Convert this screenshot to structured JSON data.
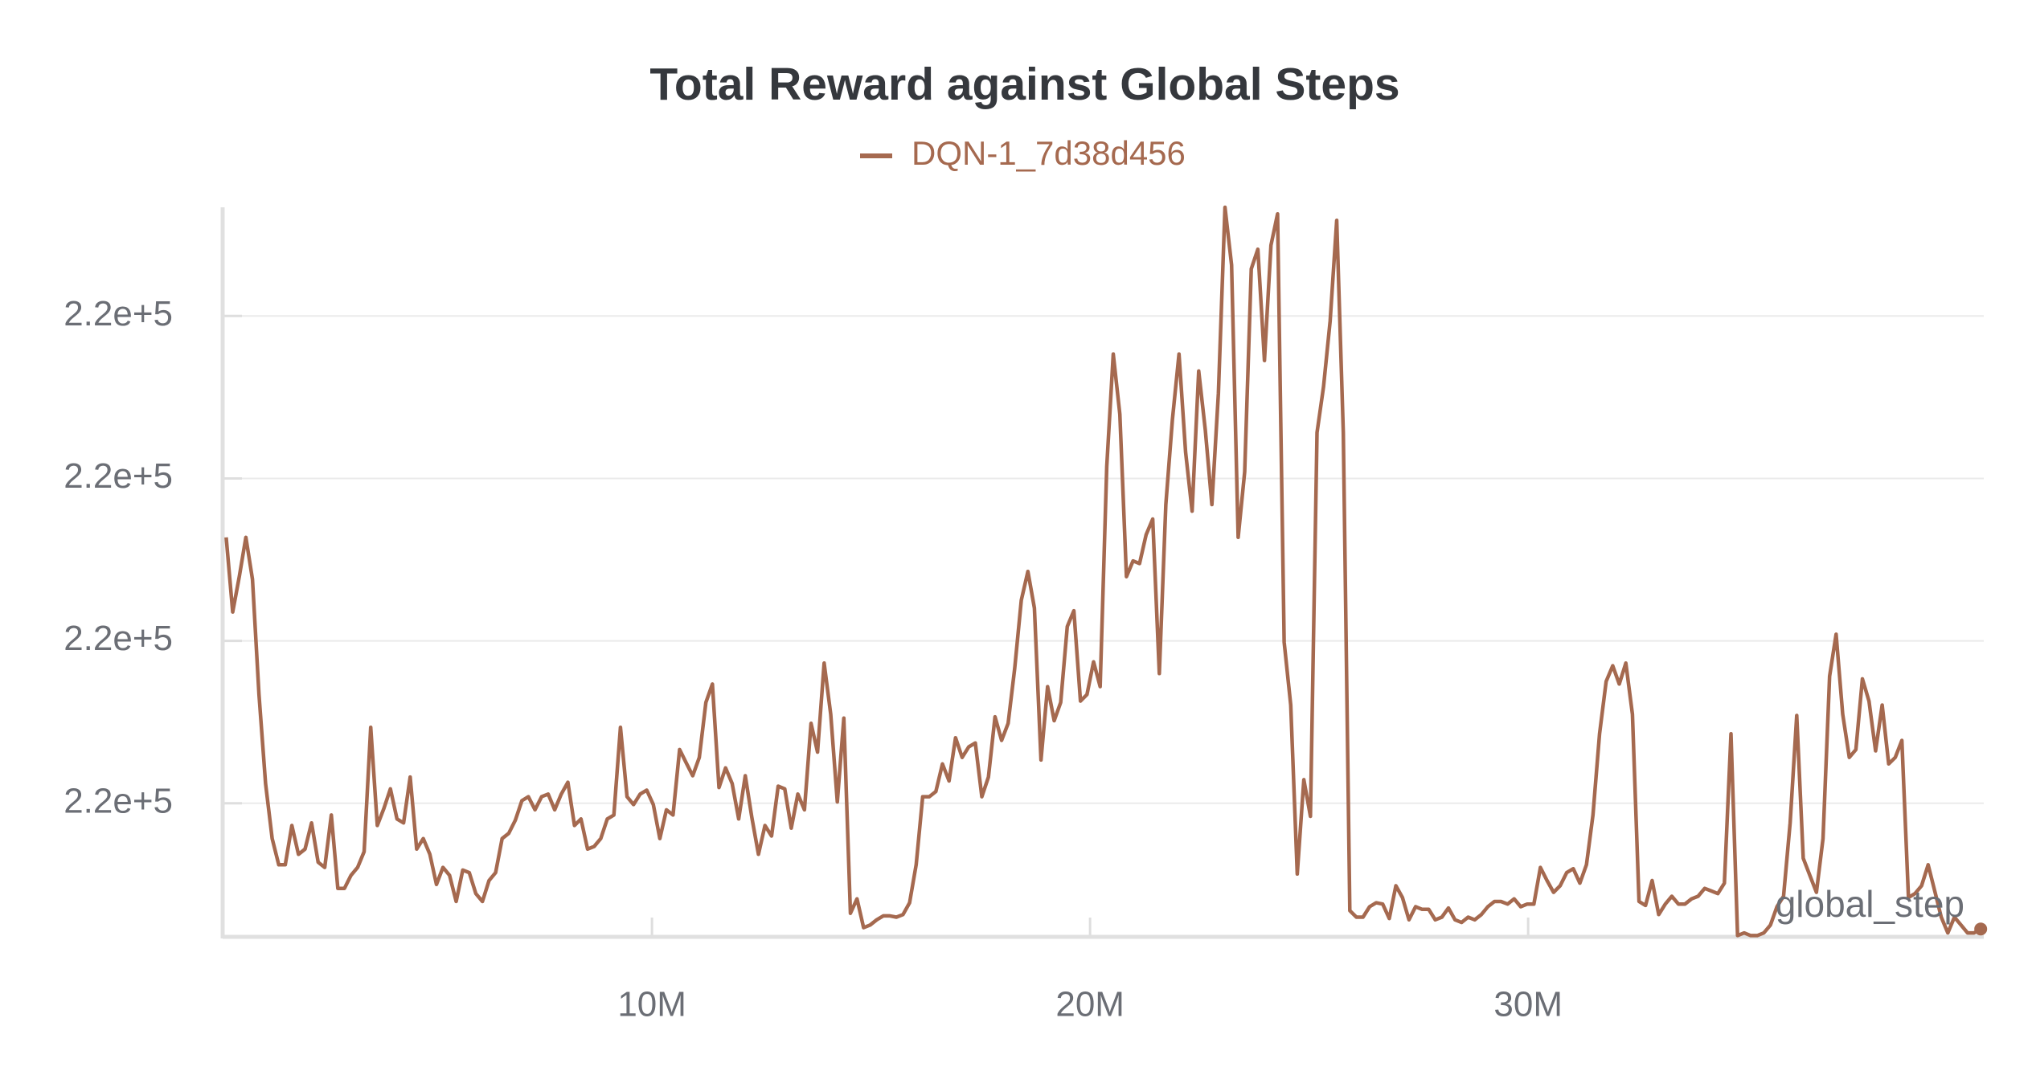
{
  "chart_data": {
    "type": "line",
    "title": "Total Reward against Global Steps",
    "x_label": "global_step",
    "x": [
      280000,
      430000,
      580000,
      730000,
      880000,
      1030000,
      1180000,
      1330000,
      1480000,
      1630000,
      1780000,
      1930000,
      2080000,
      2230000,
      2380000,
      2530000,
      2680000,
      2830000,
      2980000,
      3130000,
      3280000,
      3430000,
      3580000,
      3730000,
      3880000,
      4030000,
      4180000,
      4330000,
      4480000,
      4630000,
      4780000,
      4930000,
      5080000,
      5230000,
      5380000,
      5530000,
      5680000,
      5830000,
      5980000,
      6130000,
      6280000,
      6430000,
      6580000,
      6730000,
      6880000,
      7030000,
      7180000,
      7330000,
      7480000,
      7630000,
      7780000,
      7930000,
      8080000,
      8230000,
      8380000,
      8530000,
      8680000,
      8830000,
      8980000,
      9130000,
      9280000,
      9430000,
      9580000,
      9730000,
      9880000,
      10030000,
      10180000,
      10330000,
      10480000,
      10630000,
      10780000,
      10930000,
      11080000,
      11230000,
      11380000,
      11530000,
      11680000,
      11830000,
      11980000,
      12130000,
      12280000,
      12430000,
      12580000,
      12730000,
      12880000,
      13030000,
      13180000,
      13330000,
      13480000,
      13630000,
      13780000,
      13930000,
      14080000,
      14230000,
      14380000,
      14530000,
      14680000,
      14830000,
      14980000,
      15130000,
      15280000,
      15430000,
      15580000,
      15730000,
      15880000,
      16030000,
      16180000,
      16330000,
      16480000,
      16630000,
      16780000,
      16930000,
      17080000,
      17230000,
      17380000,
      17530000,
      17680000,
      17830000,
      17980000,
      18130000,
      18280000,
      18430000,
      18580000,
      18730000,
      18880000,
      19030000,
      19180000,
      19330000,
      19480000,
      19630000,
      19780000,
      19930000,
      20080000,
      20230000,
      20380000,
      20530000,
      20680000,
      20830000,
      20980000,
      21130000,
      21280000,
      21430000,
      21580000,
      21730000,
      21880000,
      22030000,
      22180000,
      22330000,
      22480000,
      22630000,
      22780000,
      22930000,
      23080000,
      23230000,
      23380000,
      23530000,
      23680000,
      23830000,
      23980000,
      24130000,
      24280000,
      24430000,
      24580000,
      24730000,
      24880000,
      25030000,
      25180000,
      25330000,
      25480000,
      25630000,
      25780000,
      25930000,
      26080000,
      26230000,
      26380000,
      26530000,
      26680000,
      26830000,
      26980000,
      27130000,
      27280000,
      27430000,
      27580000,
      27730000,
      27880000,
      28030000,
      28180000,
      28330000,
      28480000,
      28630000,
      28780000,
      28930000,
      29080000,
      29230000,
      29380000,
      29530000,
      29680000,
      29830000,
      29980000,
      30130000,
      30280000,
      30430000,
      30580000,
      30730000,
      30880000,
      31030000,
      31180000,
      31330000,
      31480000,
      31630000,
      31780000,
      31930000,
      32080000,
      32230000,
      32380000,
      32530000,
      32680000,
      32830000,
      32980000,
      33130000,
      33280000,
      33430000,
      33580000,
      33730000,
      33880000,
      34030000,
      34180000,
      34330000,
      34480000,
      34630000,
      34780000,
      34930000,
      35080000,
      35230000,
      35380000,
      35530000,
      35680000,
      35830000,
      35980000,
      36130000,
      36280000,
      36430000,
      36580000,
      36730000,
      36880000,
      37030000,
      37180000,
      37330000,
      37480000,
      37630000,
      37780000,
      37930000,
      38080000,
      38230000,
      38380000,
      38530000,
      38680000,
      38830000,
      38980000,
      39130000,
      39280000,
      39430000,
      39580000,
      39730000,
      39880000,
      40030000,
      40180000,
      40330000
    ],
    "series": [
      {
        "name": "DQN-1_7d38d456",
        "color": "#a5694f",
        "values": [
          220035,
          220029.3,
          220032,
          220035,
          220031.8,
          220023,
          220016.2,
          220012,
          220010,
          220010,
          220013,
          220010.8,
          220011.2,
          220013.2,
          220010.2,
          220009.8,
          220013.8,
          220008.2,
          220008.2,
          220009.2,
          220009.8,
          220011,
          220020.5,
          220013,
          220014.3,
          220015.8,
          220013.5,
          220013.2,
          220016.7,
          220011.2,
          220012,
          220010.8,
          220008.5,
          220009.8,
          220009.2,
          220007.2,
          220009.6,
          220009.4,
          220007.8,
          220007.2,
          220008.8,
          220009.4,
          220012,
          220012.4,
          220013.4,
          220014.9,
          220015.2,
          220014.2,
          220015.2,
          220015.4,
          220014.2,
          220015.4,
          220016.3,
          220013,
          220013.5,
          220011.2,
          220011.4,
          220012,
          220013.5,
          220013.8,
          220020.5,
          220015.2,
          220014.6,
          220015.4,
          220015.7,
          220014.6,
          220012,
          220014.2,
          220013.8,
          220018.8,
          220017.8,
          220016.8,
          220018.2,
          220022.4,
          220023.8,
          220015.9,
          220017.4,
          220016.2,
          220013.5,
          220016.8,
          220013.6,
          220010.8,
          220013,
          220012.2,
          220016,
          220015.8,
          220012.8,
          220015.4,
          220014.2,
          220020.8,
          220018.6,
          220025.4,
          220021.5,
          220014.8,
          220021.2,
          220006.3,
          220007.4,
          220005.2,
          220005.4,
          220005.8,
          220006.1,
          220006.1,
          220006,
          220006.2,
          220007.1,
          220010,
          220015.2,
          220015.2,
          220015.6,
          220017.7,
          220016.4,
          220019.7,
          220018.2,
          220019,
          220019.3,
          220015.2,
          220016.7,
          220021.3,
          220019.5,
          220020.8,
          220025,
          220030.2,
          220032.4,
          220029.6,
          220018,
          220023.6,
          220021,
          220022.4,
          220028.2,
          220029.4,
          220022.5,
          220023,
          220025.5,
          220023.6,
          220040.4,
          220049,
          220044.4,
          220032,
          220033.2,
          220033,
          220035.2,
          220036.4,
          220024.6,
          220037.5,
          220044,
          220049,
          220041.5,
          220037,
          220047.7,
          220043.2,
          220037.5,
          220046,
          220060.2,
          220055.8,
          220035,
          220040,
          220055.5,
          220057,
          220048.5,
          220057.3,
          220059.7,
          220027,
          220022.2,
          220009.3,
          220016.5,
          220013.7,
          220043,
          220046.5,
          220051.5,
          220059.2,
          220043,
          220006.5,
          220006,
          220006,
          220006.8,
          220007.1,
          220007,
          220005.9,
          220008.4,
          220007.5,
          220005.8,
          220006.8,
          220006.6,
          220006.6,
          220005.8,
          220006,
          220006.7,
          220005.8,
          220005.6,
          220006,
          220005.8,
          220006.2,
          220006.8,
          220007.2,
          220007.2,
          220007,
          220007.4,
          220006.8,
          220007,
          220007,
          220009.8,
          220008.8,
          220007.9,
          220008.4,
          220009.4,
          220009.7,
          220008.6,
          220010,
          220013.8,
          220020,
          220024,
          220025.2,
          220023.8,
          220025.4,
          220021.5,
          220007.2,
          220006.9,
          220008.8,
          220006.2,
          220007,
          220007.6,
          220007,
          220007,
          220007.4,
          220007.6,
          220008.2,
          220008,
          220007.8,
          220008.6,
          220020,
          220004.6,
          220004.8,
          220004.6,
          220004.6,
          220004.8,
          220005.4,
          220006.8,
          220007.6,
          220013.2,
          220021.4,
          220010.5,
          220009.2,
          220007.9,
          220012,
          220024.4,
          220027.6,
          220021.5,
          220018.2,
          220018.8,
          220024.2,
          220022.5,
          220018.7,
          220022.2,
          220017.7,
          220018.2,
          220019.5,
          220007.5,
          220007.8,
          220008.4,
          220010,
          220008,
          220006,
          220004.8,
          220006,
          220005.4,
          220004.8,
          220004.8,
          220005.1
        ]
      }
    ],
    "xlim": [
      200000,
      40400000
    ],
    "xticks": [
      {
        "value": 10000000,
        "label": "10M"
      },
      {
        "value": 20000000,
        "label": "20M"
      },
      {
        "value": 30000000,
        "label": "30M"
      }
    ],
    "ylim": [
      220004.5,
      220060.2
    ],
    "yticks": [
      {
        "value": 220014.7,
        "label": "2.2e+5"
      },
      {
        "value": 220027.1,
        "label": "2.2e+5"
      },
      {
        "value": 220039.5,
        "label": "2.2e+5"
      },
      {
        "value": 220051.9,
        "label": "2.2e+5"
      }
    ],
    "grid": true,
    "legend": "top"
  }
}
